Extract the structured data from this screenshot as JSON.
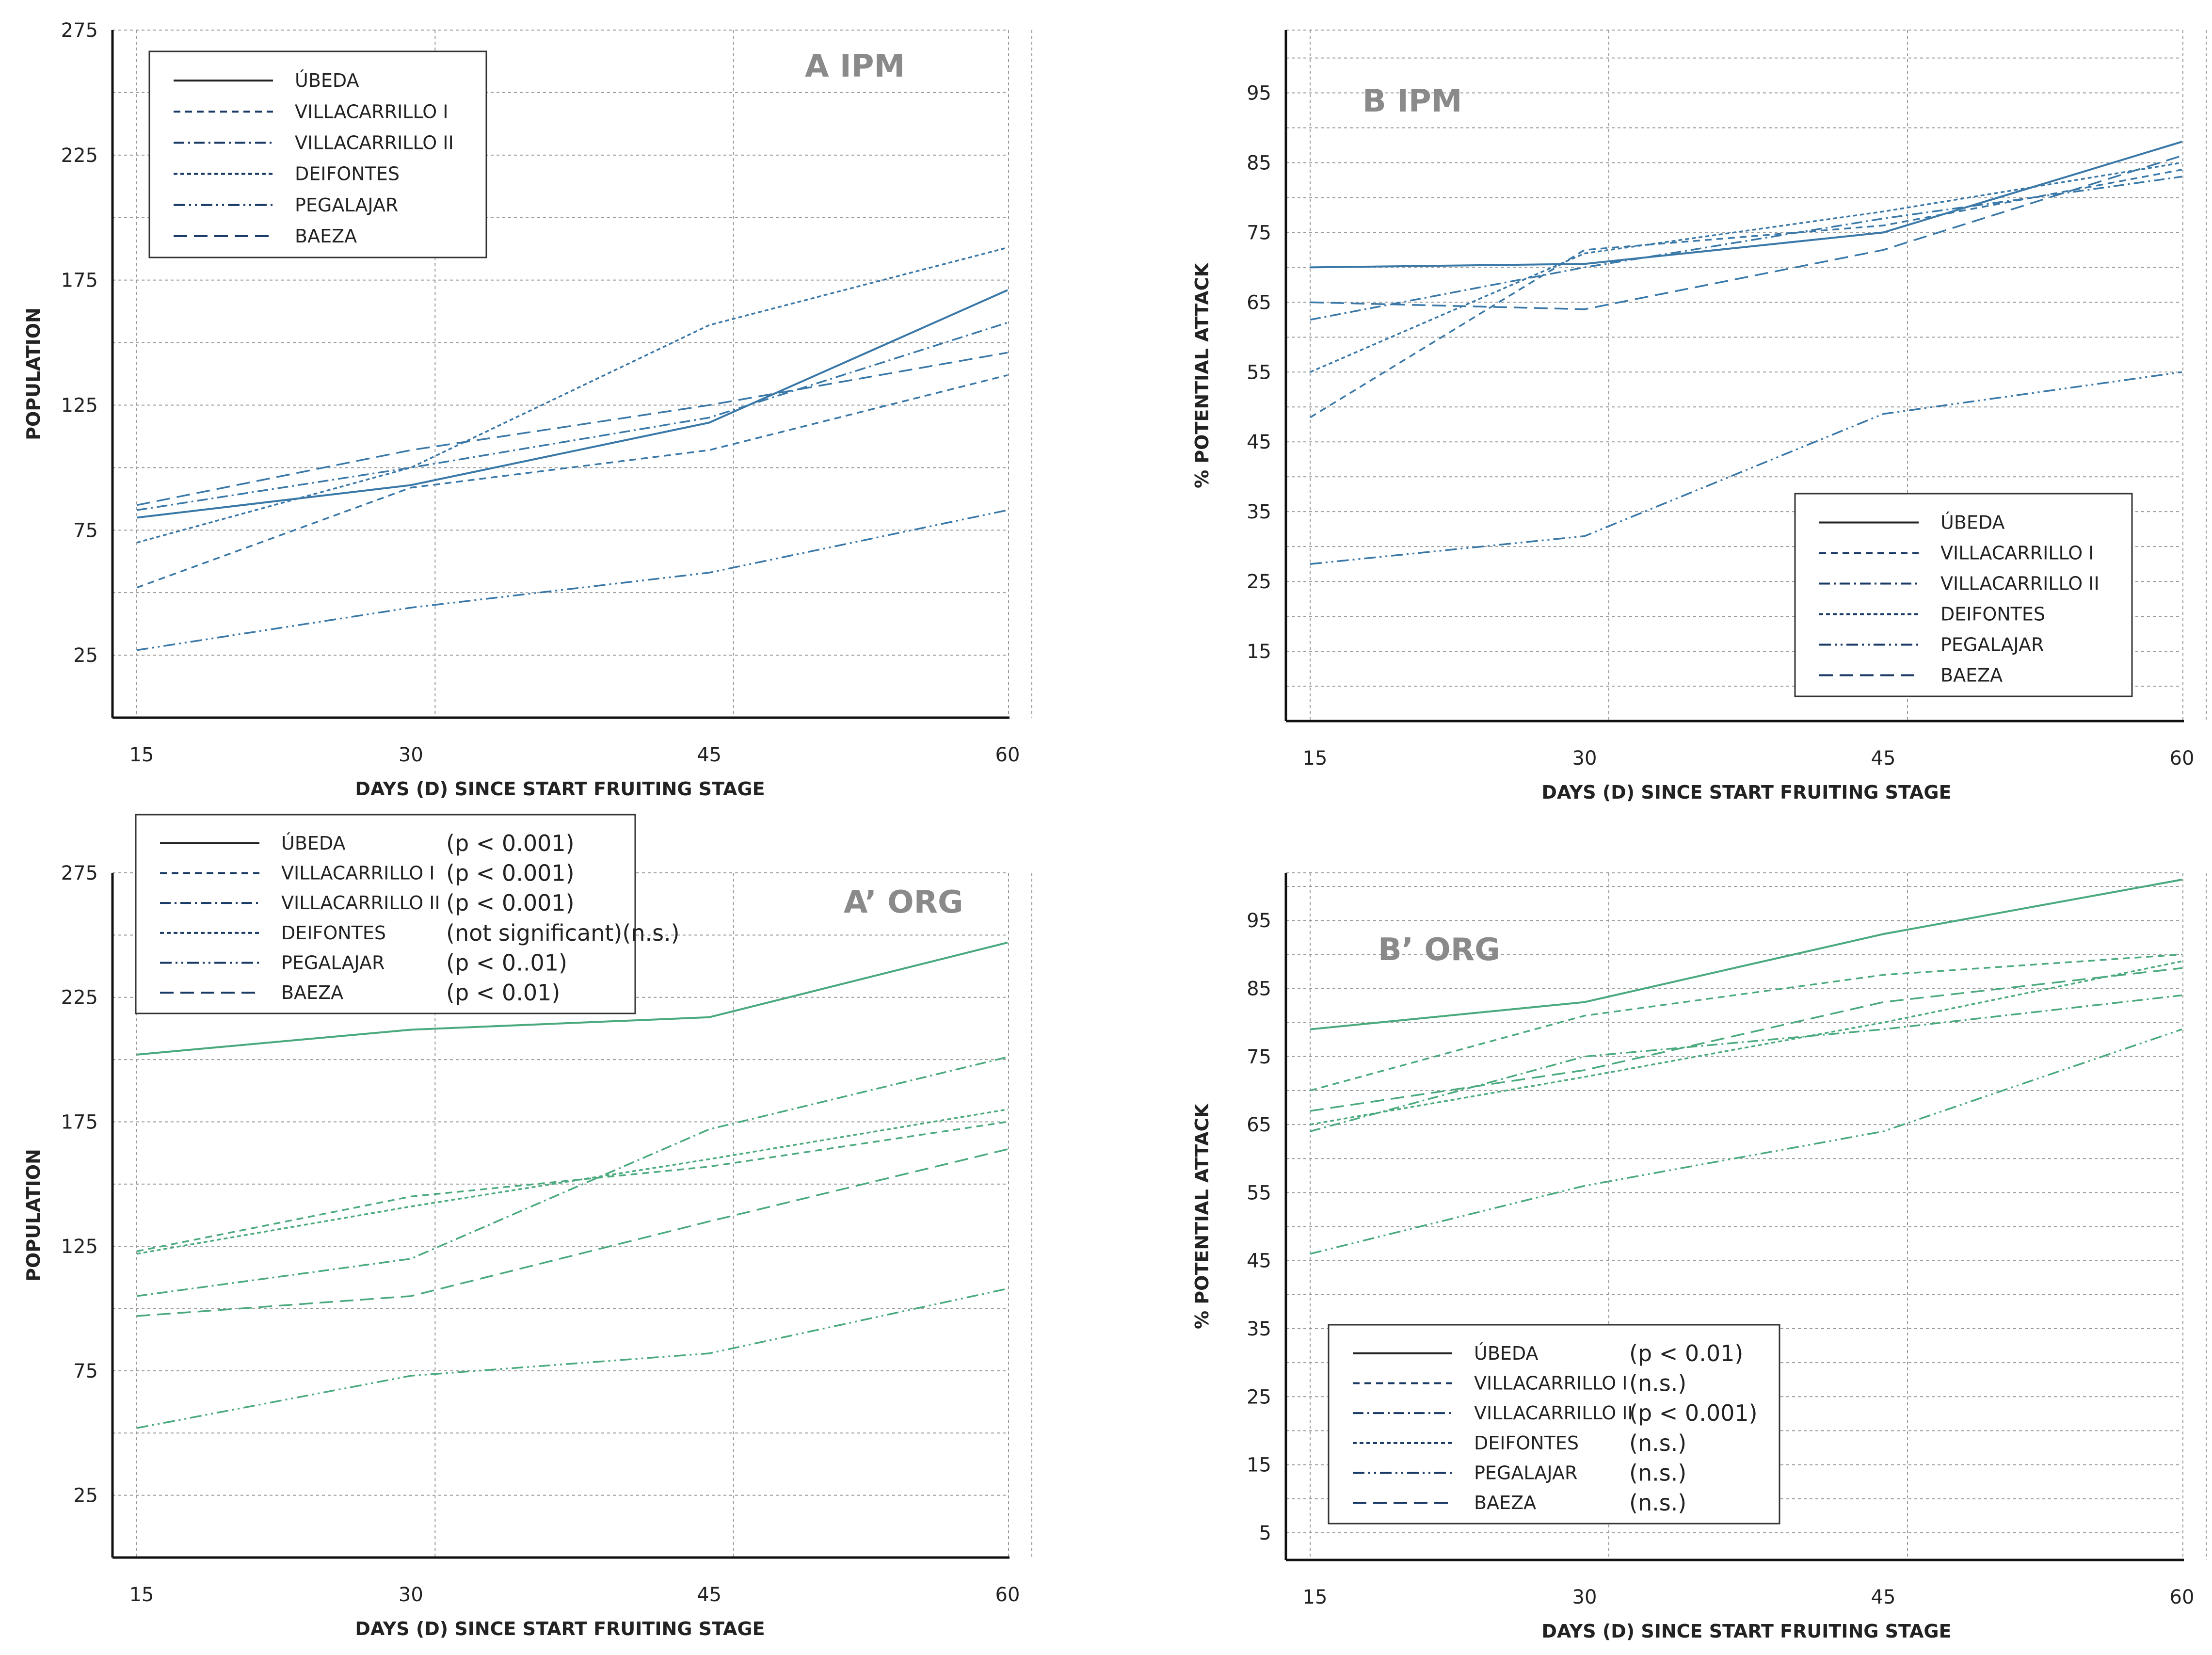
{
  "figure": {
    "background": "#ffffff"
  },
  "series_names": [
    "ÚBEDA",
    "VILLACARRILLO I",
    "VILLACARRILLO II",
    "DEIFONTES",
    "PEGALAJAR",
    "BAEZA"
  ],
  "chart_data": [
    {
      "id": "A",
      "type": "line",
      "title": "A IPM",
      "xlabel": "DAYS (D) SINCE START FRUITING STAGE",
      "ylabel": "POPULATION",
      "x": [
        15,
        30,
        45,
        60
      ],
      "xlim": [
        15,
        60
      ],
      "ylim": [
        0,
        275
      ],
      "yticks": [
        25,
        75,
        125,
        175,
        225,
        275
      ],
      "color": "#3a78a8",
      "legend_position": "top-left",
      "series": [
        {
          "name": "ÚBEDA",
          "values": [
            80,
            93,
            118,
            171
          ]
        },
        {
          "name": "VILLACARRILLO I",
          "values": [
            52,
            92,
            107,
            137
          ]
        },
        {
          "name": "VILLACARRILLO II",
          "values": [
            83,
            100,
            120,
            158
          ]
        },
        {
          "name": "DEIFONTES",
          "values": [
            70,
            100,
            157,
            188
          ]
        },
        {
          "name": "PEGALAJAR",
          "values": [
            27,
            44,
            58,
            83
          ]
        },
        {
          "name": "BAEZA",
          "values": [
            85,
            107,
            125,
            146
          ]
        }
      ]
    },
    {
      "id": "B",
      "type": "line",
      "title": "B IPM",
      "xlabel": "DAYS (D) SINCE START FRUITING STAGE",
      "ylabel": "% POTENTIAL ATTACK",
      "x": [
        15,
        30,
        45,
        60
      ],
      "xlim": [
        15,
        60
      ],
      "ylim": [
        5,
        104
      ],
      "yticks": [
        15,
        25,
        35,
        45,
        55,
        65,
        75,
        85,
        95
      ],
      "color": "#3a78a8",
      "legend_position": "bottom-right",
      "series": [
        {
          "name": "ÚBEDA",
          "values": [
            70,
            70.5,
            75,
            88
          ]
        },
        {
          "name": "VILLACARRILLO I",
          "values": [
            48.5,
            72.5,
            76,
            84
          ]
        },
        {
          "name": "VILLACARRILLO II",
          "values": [
            62.5,
            70,
            77,
            83
          ]
        },
        {
          "name": "DEIFONTES",
          "values": [
            55,
            72,
            78,
            85
          ]
        },
        {
          "name": "PEGALAJAR",
          "values": [
            27.5,
            31.5,
            49,
            55
          ]
        },
        {
          "name": "BAEZA",
          "values": [
            65,
            64,
            72.5,
            86
          ]
        }
      ]
    },
    {
      "id": "A2",
      "type": "line",
      "title": "A’ ORG",
      "xlabel": "DAYS (D) SINCE START FRUITING STAGE",
      "ylabel": "POPULATION",
      "x": [
        15,
        30,
        45,
        60
      ],
      "xlim": [
        15,
        60
      ],
      "ylim": [
        0,
        275
      ],
      "yticks": [
        25,
        75,
        125,
        175,
        225,
        275
      ],
      "color": "#4aaa7e",
      "legend_position": "top-left",
      "series": [
        {
          "name": "ÚBEDA",
          "values": [
            202,
            212,
            217,
            247
          ],
          "sig": "(p < 0.001)"
        },
        {
          "name": "VILLACARRILLO I",
          "values": [
            123,
            145,
            157,
            175
          ],
          "sig": "(p < 0.001)"
        },
        {
          "name": "VILLACARRILLO II",
          "values": [
            105,
            120,
            172,
            201
          ],
          "sig": "(p < 0.001)"
        },
        {
          "name": "DEIFONTES",
          "values": [
            122,
            141,
            160,
            180
          ],
          "sig": "(not significant)(n.s.)"
        },
        {
          "name": "PEGALAJAR",
          "values": [
            52,
            73,
            82,
            108
          ],
          "sig": "(p < 0..01)"
        },
        {
          "name": "BAEZA",
          "values": [
            97,
            105,
            135,
            164
          ],
          "sig": "(p < 0.01)"
        }
      ]
    },
    {
      "id": "B2",
      "type": "line",
      "title": "B’ ORG",
      "xlabel": "DAYS (D) SINCE START FRUITING STAGE",
      "ylabel": "% POTENTIAL ATTACK",
      "x": [
        15,
        30,
        45,
        60
      ],
      "xlim": [
        15,
        60
      ],
      "ylim": [
        1,
        102
      ],
      "yticks": [
        5,
        15,
        25,
        35,
        45,
        55,
        65,
        75,
        85,
        95
      ],
      "color": "#4aaa7e",
      "legend_position": "bottom-left",
      "series": [
        {
          "name": "ÚBEDA",
          "values": [
            79,
            83,
            93,
            101
          ],
          "sig": "(p < 0.01)"
        },
        {
          "name": "VILLACARRILLO I",
          "values": [
            70,
            81,
            87,
            90
          ],
          "sig": "(n.s.)"
        },
        {
          "name": "VILLACARRILLO II",
          "values": [
            64,
            75,
            79,
            84
          ],
          "sig": "(p < 0.001)"
        },
        {
          "name": "DEIFONTES",
          "values": [
            65,
            72,
            80,
            89
          ],
          "sig": "(n.s.)"
        },
        {
          "name": "PEGALAJAR",
          "values": [
            46,
            56,
            64,
            79
          ],
          "sig": "(n.s.)"
        },
        {
          "name": "BAEZA",
          "values": [
            67,
            73,
            83,
            88
          ],
          "sig": "(n.s.)"
        }
      ]
    }
  ]
}
